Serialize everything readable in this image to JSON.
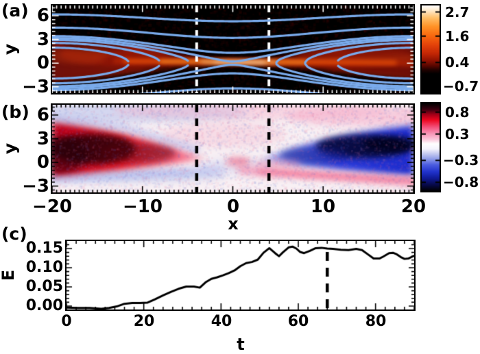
{
  "panels": {
    "a": {
      "tag": "(a)",
      "ylabel": "y",
      "yticks": [
        "6",
        "3",
        "0",
        "−3"
      ],
      "colorbar_ticks": [
        "2.7",
        "1.6",
        "0.4",
        "−0.7"
      ]
    },
    "b": {
      "tag": "(b)",
      "ylabel": "y",
      "yticks": [
        "6",
        "3",
        "0",
        "−3"
      ],
      "colorbar_ticks": [
        "0.8",
        "0.3",
        "−0.3",
        "−0.8"
      ]
    },
    "shared_x": {
      "label": "x",
      "ticks": [
        "−20",
        "−10",
        "0",
        "10",
        "20"
      ]
    },
    "c": {
      "tag": "(c)",
      "ylabel": "E",
      "xlabel": "t",
      "yticks": [
        "0.15",
        "0.10",
        "0.05",
        "0.00"
      ],
      "xticks": [
        "0",
        "20",
        "40",
        "60",
        "80"
      ]
    }
  },
  "chart_data": [
    {
      "panel": "a",
      "type": "heatmap",
      "xlabel": "x",
      "ylabel": "y",
      "x_range": [
        -20,
        20
      ],
      "y_range": [
        -3.8,
        7.3
      ],
      "colorbar": {
        "tick_values": [
          2.7,
          1.6,
          0.4,
          -0.7
        ],
        "range": [
          -1,
          3
        ],
        "stops": [
          [
            0,
            "#ffffff"
          ],
          [
            0.06,
            "#ffe9c8"
          ],
          [
            0.14,
            "#ffc069"
          ],
          [
            0.24,
            "#ff9327"
          ],
          [
            0.34,
            "#f96a10"
          ],
          [
            0.45,
            "#e4430a"
          ],
          [
            0.55,
            "#c22605"
          ],
          [
            0.63,
            "#8f1202"
          ],
          [
            0.69,
            "#570600"
          ],
          [
            0.73,
            "#250200"
          ],
          [
            0.78,
            "#000000"
          ],
          [
            1,
            "#000000"
          ]
        ]
      },
      "overlays": {
        "field_lines": {
          "flux_function": "psi = y^2/2 + A*cos(pi*x/20)",
          "A": 2.5,
          "levels": [
            -0.582,
            0.773,
            1.822,
            2.52,
            3.345,
            7.62,
            16.55
          ],
          "color": "#7aabec"
        },
        "dashed_vertical_lines": {
          "x": [
            -4,
            4
          ],
          "color": "#ffffff"
        }
      },
      "features": {
        "current_sheet": {
          "along_y": 0.1,
          "x_extent": [
            -14,
            20
          ],
          "brightest_x": [
            -3,
            5
          ],
          "peak_value": 2.9
        },
        "left_exhaust_lobe": {
          "apex": [
            -2.3,
            0.4
          ],
          "edge_y_span": [
            -2.3,
            3.3
          ],
          "typical_value": 0.9
        },
        "right_exhaust_lobe": {
          "apex": [
            3.2,
            0.3
          ],
          "edge_y_span": [
            -2.0,
            3.2
          ],
          "typical_value": 0.9
        },
        "background_value": -0.7
      }
    },
    {
      "panel": "b",
      "type": "heatmap",
      "xlabel": "x",
      "ylabel": "y",
      "x_range": [
        -20,
        20
      ],
      "y_range": [
        -3.8,
        7.3
      ],
      "colorbar": {
        "tick_values": [
          0.8,
          0.3,
          -0.3,
          -0.8
        ],
        "range": [
          -1,
          1
        ],
        "stops": [
          [
            0,
            "#000000"
          ],
          [
            0.07,
            "#3c0010"
          ],
          [
            0.13,
            "#a80018"
          ],
          [
            0.19,
            "#ec0720"
          ],
          [
            0.27,
            "#f4507a"
          ],
          [
            0.34,
            "#f792b4"
          ],
          [
            0.41,
            "#fbc6da"
          ],
          [
            0.46,
            "#ffffff"
          ],
          [
            0.52,
            "#f5f4fd"
          ],
          [
            0.57,
            "#c9cdf2"
          ],
          [
            0.63,
            "#93a0ea"
          ],
          [
            0.7,
            "#4c5de0"
          ],
          [
            0.78,
            "#2133cc"
          ],
          [
            0.85,
            "#111c9a"
          ],
          [
            0.92,
            "#080b52"
          ],
          [
            1,
            "#000000"
          ]
        ]
      },
      "overlays": {
        "dashed_vertical_lines": {
          "x": [
            -4,
            4
          ],
          "color": "#000000"
        }
      },
      "features": {
        "left_wedge": {
          "sign": "positive",
          "apex": [
            -3.0,
            0.45
          ],
          "edge_y_span": [
            -1.9,
            5.2
          ],
          "core_value": 0.8
        },
        "right_wedge": {
          "sign": "negative",
          "apex": [
            3.0,
            0.3
          ],
          "edge_y_span": [
            -1.7,
            4.7
          ],
          "core_value": -0.8
        },
        "background_value": 0.1
      }
    },
    {
      "panel": "c",
      "type": "line",
      "xlabel": "t",
      "ylabel": "E",
      "x_range": [
        0,
        90
      ],
      "y_range": [
        -0.012,
        0.167
      ],
      "xtick_values": [
        0,
        20,
        40,
        60,
        80
      ],
      "ytick_values": [
        0,
        0.05,
        0.1,
        0.15
      ],
      "dashed_vertical_line_t": 67.5,
      "series": [
        {
          "name": "E",
          "color": "#000000",
          "points": [
            [
              0,
              -0.004
            ],
            [
              3,
              -0.005
            ],
            [
              6,
              -0.005
            ],
            [
              9,
              -0.007
            ],
            [
              11,
              -0.005
            ],
            [
              13,
              -0.001
            ],
            [
              15,
              0.006
            ],
            [
              17,
              0.008
            ],
            [
              19,
              0.008
            ],
            [
              21,
              0.009
            ],
            [
              23,
              0.018
            ],
            [
              25,
              0.028
            ],
            [
              27,
              0.037
            ],
            [
              29,
              0.045
            ],
            [
              31,
              0.051
            ],
            [
              33,
              0.051
            ],
            [
              34.5,
              0.048
            ],
            [
              36,
              0.062
            ],
            [
              37.5,
              0.071
            ],
            [
              39,
              0.075
            ],
            [
              40.5,
              0.08
            ],
            [
              42,
              0.086
            ],
            [
              43.5,
              0.093
            ],
            [
              45,
              0.104
            ],
            [
              46.5,
              0.112
            ],
            [
              48,
              0.115
            ],
            [
              49.5,
              0.121
            ],
            [
              51,
              0.139
            ],
            [
              52.5,
              0.151
            ],
            [
              54,
              0.138
            ],
            [
              55,
              0.13
            ],
            [
              56,
              0.14
            ],
            [
              57.5,
              0.153
            ],
            [
              58.5,
              0.155
            ],
            [
              59.5,
              0.15
            ],
            [
              60.5,
              0.141
            ],
            [
              61.5,
              0.138
            ],
            [
              63,
              0.144
            ],
            [
              64.5,
              0.151
            ],
            [
              66,
              0.152
            ],
            [
              67.5,
              0.15
            ],
            [
              69,
              0.149
            ],
            [
              71,
              0.147
            ],
            [
              73,
              0.146
            ],
            [
              75,
              0.149
            ],
            [
              76.5,
              0.146
            ],
            [
              78,
              0.135
            ],
            [
              79.5,
              0.124
            ],
            [
              81,
              0.124
            ],
            [
              82,
              0.129
            ],
            [
              83.5,
              0.138
            ],
            [
              84.5,
              0.139
            ],
            [
              85.5,
              0.135
            ],
            [
              86.5,
              0.128
            ],
            [
              87.5,
              0.123
            ],
            [
              88.5,
              0.124
            ],
            [
              89.5,
              0.129
            ],
            [
              90,
              0.131
            ]
          ]
        }
      ]
    }
  ]
}
